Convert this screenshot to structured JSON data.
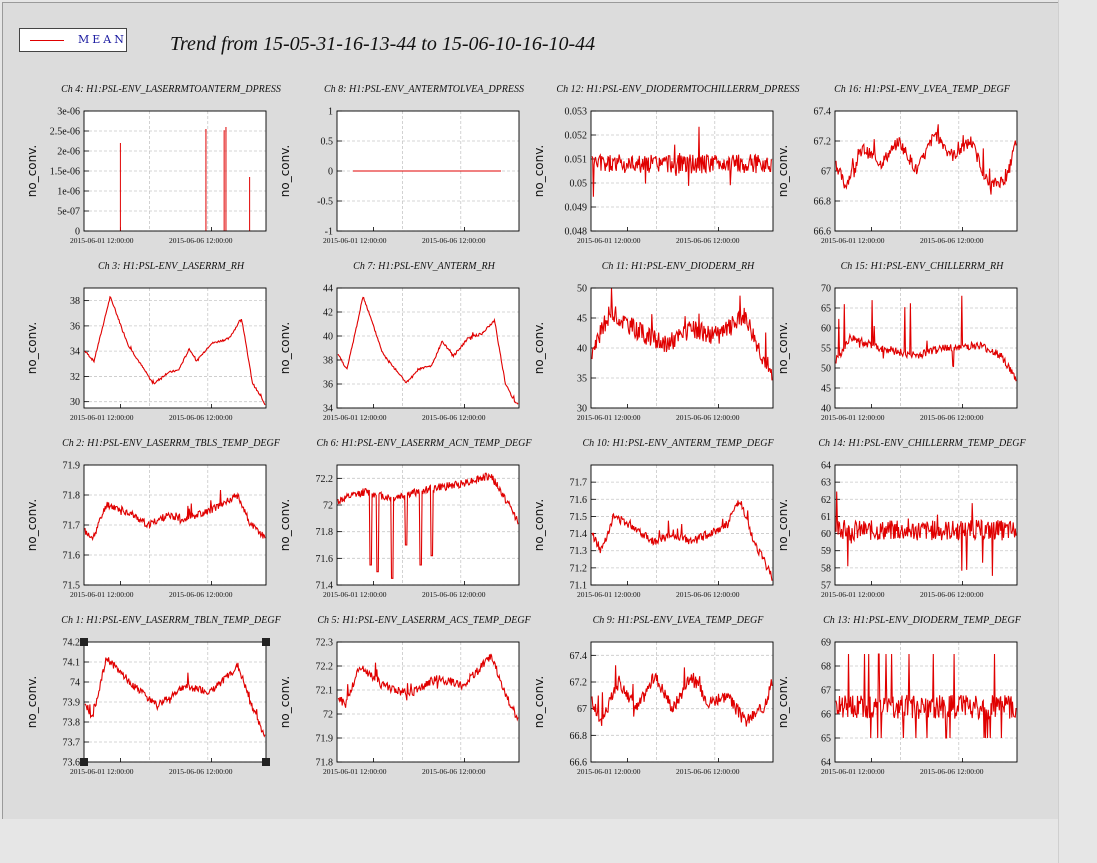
{
  "legend": {
    "label": "MEAN",
    "color": "#e00000"
  },
  "title": "Trend from 15-05-31-16-13-44 to 15-06-10-16-10-44",
  "chart_data": [
    {
      "type": "line",
      "title": "Ch 4: H1:PSL-ENV_LASERRMTOANTERM_DPRESS",
      "ylabel": "no_conv.",
      "ylim": [
        0,
        3e-06
      ],
      "yticks": [
        "0",
        "5e-07",
        "1e-06",
        "1.5e-06",
        "2e-06",
        "2.5e-06",
        "3e-06"
      ],
      "xticks": [
        "2015-06-01 12:00:00",
        "2015-06-06 12:00:00"
      ],
      "signal": "spikes",
      "base": 0,
      "spikes": [
        [
          0.2,
          2.2e-06
        ],
        [
          0.67,
          2.55e-06
        ],
        [
          0.77,
          2.52e-06
        ],
        [
          0.78,
          2.6e-06
        ],
        [
          0.91,
          1.35e-06
        ]
      ]
    },
    {
      "type": "line",
      "title": "Ch 8: H1:PSL-ENV_ANTERMTOLVEA_DPRESS",
      "ylabel": "no_conv.",
      "ylim": [
        -1,
        1
      ],
      "yticks": [
        "-1",
        "-0.5",
        "0",
        "0.5",
        "1"
      ],
      "xticks": [
        "2015-06-01 12:00:00",
        "2015-06-06 12:00:00"
      ],
      "signal": "flat",
      "base": 0
    },
    {
      "type": "line",
      "title": "Ch 12: H1:PSL-ENV_DIODERMTOCHILLERRM_DPRESS",
      "ylabel": "no_conv.",
      "ylim": [
        0.048,
        0.053
      ],
      "yticks": [
        "0.048",
        "0.049",
        "0.05",
        "0.051",
        "0.052",
        "0.053"
      ],
      "xticks": [
        "2015-06-01 12:00:00",
        "2015-06-06 12:00:00"
      ],
      "signal": "dense",
      "base": 0.0508,
      "noise": 0.0004,
      "spike": 0.0013
    },
    {
      "type": "line",
      "title": "Ch 16: H1:PSL-ENV_LVEA_TEMP_DEGF",
      "ylabel": "no_conv.",
      "ylim": [
        66.6,
        67.4
      ],
      "yticks": [
        "66.6",
        "66.8",
        "67",
        "67.2",
        "67.4"
      ],
      "xticks": [
        "2015-06-01 12:00:00",
        "2015-06-06 12:00:00"
      ],
      "signal": "trend",
      "trend": [
        [
          0,
          67.05
        ],
        [
          0.05,
          66.9
        ],
        [
          0.15,
          67.15
        ],
        [
          0.25,
          67.05
        ],
        [
          0.35,
          67.2
        ],
        [
          0.45,
          67.0
        ],
        [
          0.55,
          67.25
        ],
        [
          0.65,
          67.1
        ],
        [
          0.75,
          67.2
        ],
        [
          0.85,
          66.9
        ],
        [
          0.95,
          66.95
        ],
        [
          1,
          67.2
        ]
      ],
      "noise": 0.04,
      "spike": 0.12
    },
    {
      "type": "line",
      "title": "Ch 3: H1:PSL-ENV_LASERRM_RH",
      "ylabel": "no_conv.",
      "ylim": [
        29.5,
        39
      ],
      "yticks": [
        "30",
        "32",
        "34",
        "36",
        "38"
      ],
      "xticks": [
        "2015-06-01 12:00:00",
        "2015-06-06 12:00:00"
      ],
      "signal": "trend",
      "trend": [
        [
          0,
          34
        ],
        [
          0.05,
          33.2
        ],
        [
          0.14,
          38.3
        ],
        [
          0.24,
          34.5
        ],
        [
          0.38,
          31.4
        ],
        [
          0.46,
          32.3
        ],
        [
          0.52,
          32.5
        ],
        [
          0.58,
          34.2
        ],
        [
          0.62,
          33.2
        ],
        [
          0.7,
          34.6
        ],
        [
          0.8,
          35
        ],
        [
          0.87,
          36.6
        ],
        [
          0.93,
          31.5
        ],
        [
          0.98,
          30.3
        ],
        [
          1,
          29.8
        ]
      ],
      "noise": 0.08,
      "spike": 0.2
    },
    {
      "type": "line",
      "title": "Ch 7: H1:PSL-ENV_ANTERM_RH",
      "ylabel": "no_conv.",
      "ylim": [
        34,
        44
      ],
      "yticks": [
        "34",
        "36",
        "38",
        "40",
        "42",
        "44"
      ],
      "xticks": [
        "2015-06-01 12:00:00",
        "2015-06-06 12:00:00"
      ],
      "signal": "trend",
      "trend": [
        [
          0,
          38.5
        ],
        [
          0.05,
          37.2
        ],
        [
          0.14,
          43.3
        ],
        [
          0.25,
          38.5
        ],
        [
          0.38,
          36.1
        ],
        [
          0.46,
          37.3
        ],
        [
          0.52,
          37.5
        ],
        [
          0.58,
          39.6
        ],
        [
          0.64,
          38.3
        ],
        [
          0.72,
          39.8
        ],
        [
          0.8,
          40.2
        ],
        [
          0.87,
          41.3
        ],
        [
          0.93,
          36.0
        ],
        [
          0.98,
          34.6
        ],
        [
          1,
          34.3
        ]
      ],
      "noise": 0.1,
      "spike": 0.25
    },
    {
      "type": "line",
      "title": "Ch 11: H1:PSL-ENV_DIODERM_RH",
      "ylabel": "no_conv.",
      "ylim": [
        30,
        50
      ],
      "yticks": [
        "30",
        "35",
        "40",
        "45",
        "50"
      ],
      "xticks": [
        "2015-06-01 12:00:00",
        "2015-06-06 12:00:00"
      ],
      "signal": "trend",
      "trend": [
        [
          0,
          39
        ],
        [
          0.1,
          46
        ],
        [
          0.25,
          43
        ],
        [
          0.4,
          40.5
        ],
        [
          0.55,
          43
        ],
        [
          0.7,
          42
        ],
        [
          0.85,
          45.5
        ],
        [
          0.95,
          38.5
        ],
        [
          1,
          36
        ]
      ],
      "noise": 1.6,
      "spike": 3.5
    },
    {
      "type": "line",
      "title": "Ch 15: H1:PSL-ENV_CHILLERRM_RH",
      "ylabel": "no_conv.",
      "ylim": [
        40,
        70
      ],
      "yticks": [
        "40",
        "45",
        "50",
        "55",
        "60",
        "65",
        "70"
      ],
      "xticks": [
        "2015-06-01 12:00:00",
        "2015-06-06 12:00:00"
      ],
      "signal": "trend",
      "trend": [
        [
          0,
          52
        ],
        [
          0.08,
          57.5
        ],
        [
          0.25,
          55
        ],
        [
          0.45,
          53
        ],
        [
          0.6,
          55
        ],
        [
          0.8,
          55.5
        ],
        [
          0.92,
          53
        ],
        [
          1,
          47
        ]
      ],
      "noise": 1.0,
      "spike": 9
    },
    {
      "type": "line",
      "title": "Ch 2: H1:PSL-ENV_LASERRM_TBLS_TEMP_DEGF",
      "ylabel": "no_conv.",
      "ylim": [
        71.5,
        71.9
      ],
      "yticks": [
        "71.5",
        "71.6",
        "71.7",
        "71.8",
        "71.9"
      ],
      "xticks": [
        "2015-06-01 12:00:00",
        "2015-06-06 12:00:00"
      ],
      "signal": "trend",
      "trend": [
        [
          0,
          71.68
        ],
        [
          0.04,
          71.65
        ],
        [
          0.12,
          71.77
        ],
        [
          0.25,
          71.74
        ],
        [
          0.35,
          71.7
        ],
        [
          0.45,
          71.73
        ],
        [
          0.55,
          71.72
        ],
        [
          0.7,
          71.75
        ],
        [
          0.85,
          71.8
        ],
        [
          0.92,
          71.7
        ],
        [
          1,
          71.66
        ]
      ],
      "noise": 0.012,
      "spike": 0.03
    },
    {
      "type": "line",
      "title": "Ch 6: H1:PSL-ENV_LASERRM_ACN_TEMP_DEGF",
      "ylabel": "no_conv.",
      "ylim": [
        71.4,
        72.3
      ],
      "yticks": [
        "71.4",
        "71.6",
        "71.8",
        "72",
        "72.2"
      ],
      "xticks": [
        "2015-06-01 12:00:00",
        "2015-06-06 12:00:00"
      ],
      "signal": "dips",
      "trend": [
        [
          0,
          72.03
        ],
        [
          0.15,
          72.1
        ],
        [
          0.3,
          72.05
        ],
        [
          0.5,
          72.12
        ],
        [
          0.65,
          72.15
        ],
        [
          0.85,
          72.22
        ],
        [
          0.95,
          72.0
        ],
        [
          1,
          71.88
        ]
      ],
      "noise": 0.03,
      "dips": [
        [
          0.18,
          71.55
        ],
        [
          0.22,
          71.5
        ],
        [
          0.3,
          71.45
        ],
        [
          0.38,
          71.7
        ],
        [
          0.46,
          71.55
        ],
        [
          0.52,
          71.62
        ]
      ]
    },
    {
      "type": "line",
      "title": "Ch 10: H1:PSL-ENV_ANTERM_TEMP_DEGF",
      "ylabel": "no_conv.",
      "ylim": [
        71.1,
        71.8
      ],
      "yticks": [
        "71.1",
        "71.2",
        "71.3",
        "71.4",
        "71.5",
        "71.6",
        "71.7"
      ],
      "xticks": [
        "2015-06-01 12:00:00",
        "2015-06-06 12:00:00"
      ],
      "signal": "trend",
      "trend": [
        [
          0,
          71.4
        ],
        [
          0.05,
          71.3
        ],
        [
          0.12,
          71.5
        ],
        [
          0.22,
          71.45
        ],
        [
          0.35,
          71.35
        ],
        [
          0.45,
          71.4
        ],
        [
          0.55,
          71.35
        ],
        [
          0.65,
          71.4
        ],
        [
          0.75,
          71.45
        ],
        [
          0.82,
          71.6
        ],
        [
          0.88,
          71.4
        ],
        [
          0.95,
          71.25
        ],
        [
          1,
          71.15
        ]
      ],
      "noise": 0.025,
      "spike": 0.05
    },
    {
      "type": "line",
      "title": "Ch 14: H1:PSL-ENV_CHILLERRM_TEMP_DEGF",
      "ylabel": "no_conv.",
      "ylim": [
        57,
        64
      ],
      "yticks": [
        "57",
        "58",
        "59",
        "60",
        "61",
        "62",
        "63",
        "64"
      ],
      "xticks": [
        "2015-06-01 12:00:00",
        "2015-06-06 12:00:00"
      ],
      "signal": "dense",
      "base": 60.2,
      "noise": 0.6,
      "spike": 2.5
    },
    {
      "type": "line",
      "title": "Ch 1: H1:PSL-ENV_LASERRM_TBLN_TEMP_DEGF",
      "ylabel": "no_conv.",
      "ylim": [
        73.6,
        74.2
      ],
      "yticks": [
        "73.6",
        "73.7",
        "73.8",
        "73.9",
        "74",
        "74.1",
        "74.2"
      ],
      "xticks": [
        "2015-06-01 12:00:00",
        "2015-06-06 12:00:00"
      ],
      "signal": "trend",
      "trend": [
        [
          0,
          73.9
        ],
        [
          0.04,
          73.82
        ],
        [
          0.12,
          74.12
        ],
        [
          0.25,
          74.0
        ],
        [
          0.4,
          73.88
        ],
        [
          0.55,
          73.98
        ],
        [
          0.7,
          73.95
        ],
        [
          0.85,
          74.08
        ],
        [
          0.92,
          73.9
        ],
        [
          1,
          73.72
        ]
      ],
      "noise": 0.018,
      "spike": 0.04,
      "selected": true
    },
    {
      "type": "line",
      "title": "Ch 5: H1:PSL-ENV_LASERRM_ACS_TEMP_DEGF",
      "ylabel": "no_conv.",
      "ylim": [
        71.8,
        72.3
      ],
      "yticks": [
        "71.8",
        "71.9",
        "72",
        "72.1",
        "72.2",
        "72.3"
      ],
      "xticks": [
        "2015-06-01 12:00:00",
        "2015-06-06 12:00:00"
      ],
      "signal": "trend",
      "trend": [
        [
          0,
          72.08
        ],
        [
          0.04,
          72.03
        ],
        [
          0.12,
          72.2
        ],
        [
          0.25,
          72.12
        ],
        [
          0.4,
          72.08
        ],
        [
          0.55,
          72.15
        ],
        [
          0.7,
          72.12
        ],
        [
          0.85,
          72.24
        ],
        [
          0.95,
          72.05
        ],
        [
          1,
          71.98
        ]
      ],
      "noise": 0.018,
      "spike": 0.05
    },
    {
      "type": "line",
      "title": "Ch 9: H1:PSL-ENV_LVEA_TEMP_DEGF",
      "ylabel": "no_conv.",
      "ylim": [
        66.6,
        67.5
      ],
      "yticks": [
        "66.6",
        "66.8",
        "67",
        "67.2",
        "67.4"
      ],
      "xticks": [
        "2015-06-01 12:00:00",
        "2015-06-06 12:00:00"
      ],
      "signal": "trend",
      "trend": [
        [
          0,
          67.05
        ],
        [
          0.05,
          66.9
        ],
        [
          0.15,
          67.2
        ],
        [
          0.25,
          67.0
        ],
        [
          0.35,
          67.25
        ],
        [
          0.45,
          67.0
        ],
        [
          0.55,
          67.25
        ],
        [
          0.65,
          67.05
        ],
        [
          0.75,
          67.1
        ],
        [
          0.85,
          66.9
        ],
        [
          0.95,
          67.0
        ],
        [
          1,
          67.2
        ]
      ],
      "noise": 0.05,
      "spike": 0.15
    },
    {
      "type": "line",
      "title": "Ch 13: H1:PSL-ENV_DIODERM_TEMP_DEGF",
      "ylabel": "no_conv.",
      "ylim": [
        64,
        69
      ],
      "yticks": [
        "64",
        "65",
        "66",
        "67",
        "68",
        "69"
      ],
      "xticks": [
        "2015-06-01 12:00:00",
        "2015-06-06 12:00:00"
      ],
      "signal": "square",
      "base": 66.3,
      "noise": 0.5,
      "high": 68.5,
      "low": 65.0
    }
  ]
}
